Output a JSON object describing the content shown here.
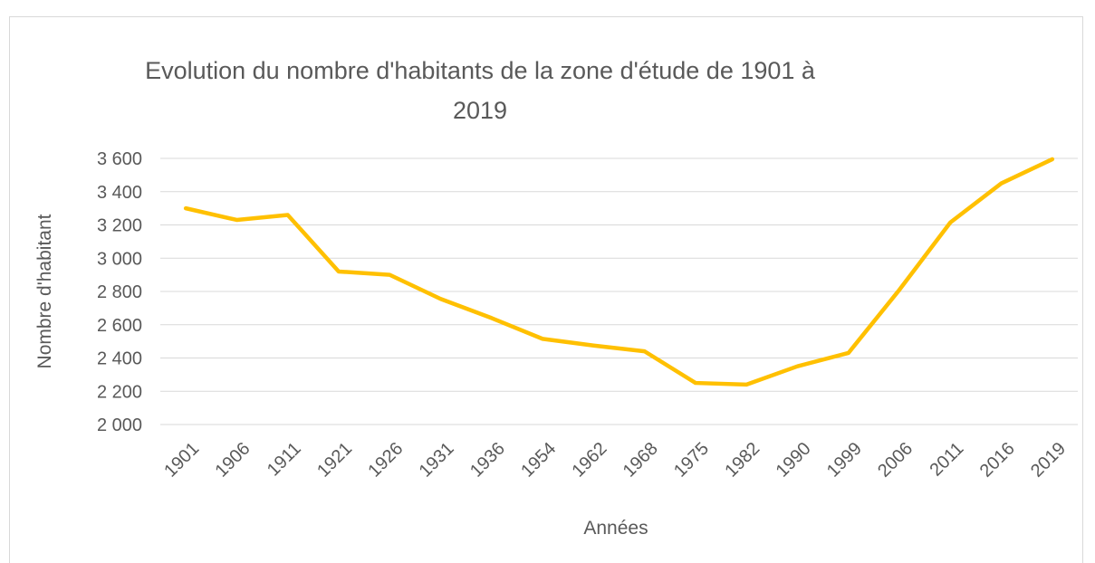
{
  "chart_data": {
    "type": "line",
    "title": "Evolution du nombre d'habitants de la zone d'étude de 1901 à 2019",
    "xlabel": "Années",
    "ylabel": "Nombre d'habitant",
    "categories": [
      "1901",
      "1906",
      "1911",
      "1921",
      "1926",
      "1931",
      "1936",
      "1954",
      "1962",
      "1968",
      "1975",
      "1982",
      "1990",
      "1999",
      "2006",
      "2011",
      "2016",
      "2019"
    ],
    "series": [
      {
        "name": "Nombre d'habitant",
        "color": "#ffc000",
        "values": [
          3300,
          3230,
          3260,
          2920,
          2900,
          2755,
          2640,
          2515,
          2475,
          2440,
          2250,
          2240,
          2350,
          2430,
          2810,
          3215,
          3450,
          3595
        ]
      }
    ],
    "ylim": [
      2000,
      3600
    ],
    "yticks": [
      {
        "value": 2000,
        "label": "2 000"
      },
      {
        "value": 2200,
        "label": "2 200"
      },
      {
        "value": 2400,
        "label": "2 400"
      },
      {
        "value": 2600,
        "label": "2 600"
      },
      {
        "value": 2800,
        "label": "2 800"
      },
      {
        "value": 3000,
        "label": "3 000"
      },
      {
        "value": 3200,
        "label": "3 200"
      },
      {
        "value": 3400,
        "label": "3 400"
      },
      {
        "value": 3600,
        "label": "3 600"
      }
    ],
    "grid": true
  }
}
